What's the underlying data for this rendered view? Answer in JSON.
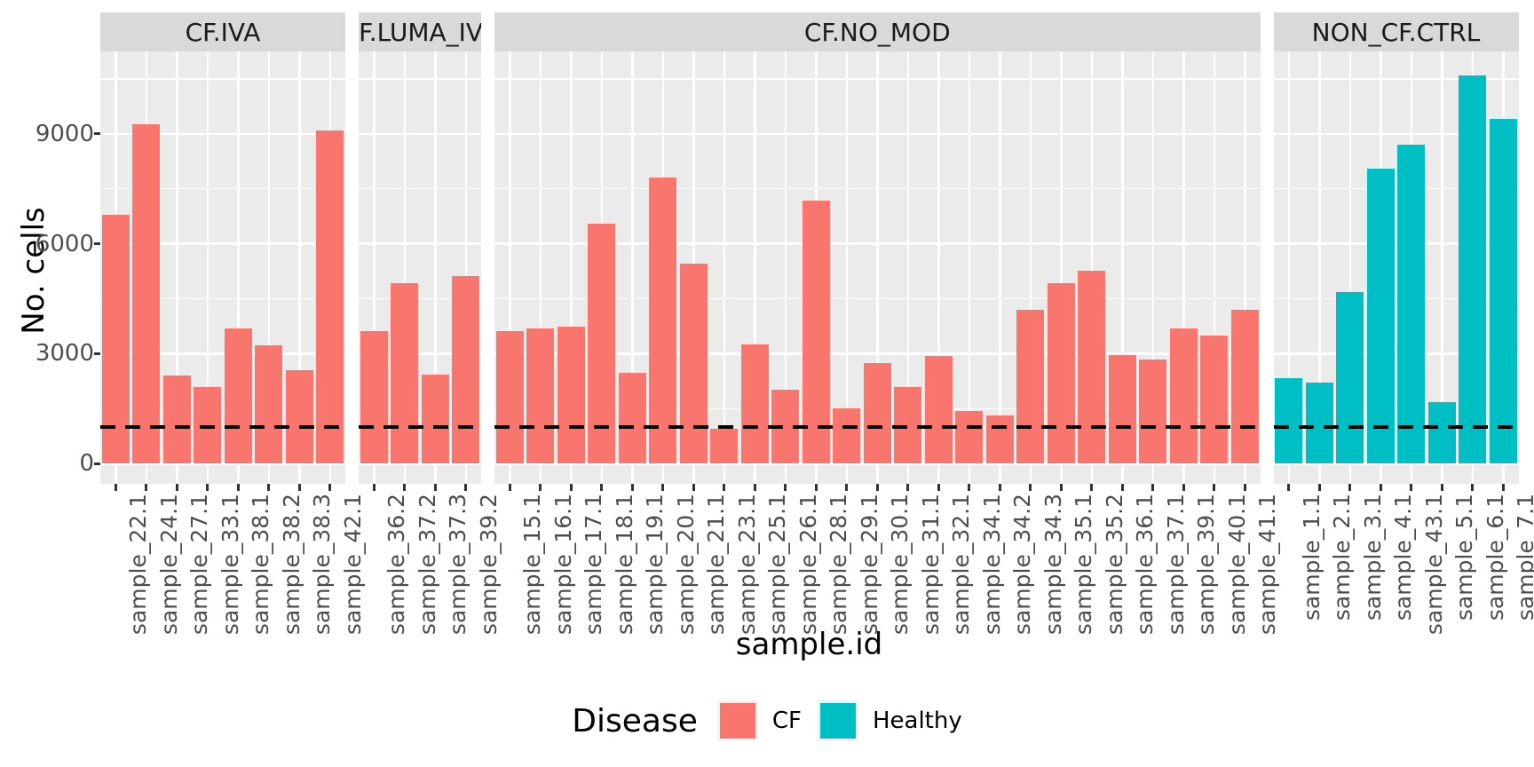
{
  "chart_data": {
    "type": "bar",
    "title": "",
    "xlabel": "sample.id",
    "ylabel": "No. cells",
    "ylim": [
      -550,
      11250
    ],
    "y_ticks": [
      0,
      3000,
      6000,
      9000
    ],
    "y_minor_gridlines": [
      1500,
      4500,
      7500,
      10500
    ],
    "grid": "on",
    "threshold_line": {
      "value": 1000,
      "color": "#000000",
      "style": "dashed"
    },
    "colors": {
      "CF": "#F8766D",
      "Healthy": "#00BFC4"
    },
    "theme": {
      "panel_bg": "#EBEBEB",
      "strip_bg": "#D9D9D9",
      "gridline": "#FFFFFF",
      "axis_text": "#4D4D4D",
      "title_text": "#000000"
    },
    "legend": {
      "title": "Disease",
      "position": "bottom",
      "entries": [
        {
          "label": "CF",
          "color": "#F8766D"
        },
        {
          "label": "Healthy",
          "color": "#00BFC4"
        }
      ]
    },
    "facets": [
      {
        "label": "CF.IVA",
        "disease": "CF",
        "samples": [
          {
            "id": "sample_22.1",
            "value": 6800
          },
          {
            "id": "sample_24.1",
            "value": 9260
          },
          {
            "id": "sample_27.1",
            "value": 2410
          },
          {
            "id": "sample_33.1",
            "value": 2090
          },
          {
            "id": "sample_38.1",
            "value": 3700
          },
          {
            "id": "sample_38.2",
            "value": 3220
          },
          {
            "id": "sample_38.3",
            "value": 2560
          },
          {
            "id": "sample_42.1",
            "value": 9100
          }
        ]
      },
      {
        "label": "CF.LUMA_IVA",
        "disease": "CF",
        "samples": [
          {
            "id": "sample_36.2",
            "value": 3610
          },
          {
            "id": "sample_37.2",
            "value": 4930
          },
          {
            "id": "sample_37.3",
            "value": 2430
          },
          {
            "id": "sample_39.2",
            "value": 5120
          }
        ]
      },
      {
        "label": "CF.NO_MOD",
        "disease": "CF",
        "samples": [
          {
            "id": "sample_15.1",
            "value": 3610
          },
          {
            "id": "sample_16.1",
            "value": 3680
          },
          {
            "id": "sample_17.1",
            "value": 3730
          },
          {
            "id": "sample_18.1",
            "value": 6550
          },
          {
            "id": "sample_19.1",
            "value": 2480
          },
          {
            "id": "sample_20.1",
            "value": 7800
          },
          {
            "id": "sample_21.1",
            "value": 5450
          },
          {
            "id": "sample_23.1",
            "value": 960
          },
          {
            "id": "sample_25.1",
            "value": 3250
          },
          {
            "id": "sample_26.1",
            "value": 2020
          },
          {
            "id": "sample_28.1",
            "value": 7170
          },
          {
            "id": "sample_29.1",
            "value": 1520
          },
          {
            "id": "sample_30.1",
            "value": 2740
          },
          {
            "id": "sample_31.1",
            "value": 2090
          },
          {
            "id": "sample_32.1",
            "value": 2930
          },
          {
            "id": "sample_34.1",
            "value": 1440
          },
          {
            "id": "sample_34.2",
            "value": 1320
          },
          {
            "id": "sample_34.3",
            "value": 4190
          },
          {
            "id": "sample_35.1",
            "value": 4930
          },
          {
            "id": "sample_35.2",
            "value": 5270
          },
          {
            "id": "sample_36.1",
            "value": 2960
          },
          {
            "id": "sample_37.1",
            "value": 2840
          },
          {
            "id": "sample_39.1",
            "value": 3680
          },
          {
            "id": "sample_40.1",
            "value": 3490
          },
          {
            "id": "sample_41.1",
            "value": 4210
          }
        ]
      },
      {
        "label": "NON_CF.CTRL",
        "disease": "Healthy",
        "samples": [
          {
            "id": "sample_1.1",
            "value": 2330
          },
          {
            "id": "sample_2.1",
            "value": 2210
          },
          {
            "id": "sample_3.1",
            "value": 4690
          },
          {
            "id": "sample_4.1",
            "value": 8060
          },
          {
            "id": "sample_43.1",
            "value": 8710
          },
          {
            "id": "sample_5.1",
            "value": 1680
          },
          {
            "id": "sample_6.1",
            "value": 10600
          },
          {
            "id": "sample_7.1",
            "value": 9410
          }
        ]
      }
    ]
  }
}
